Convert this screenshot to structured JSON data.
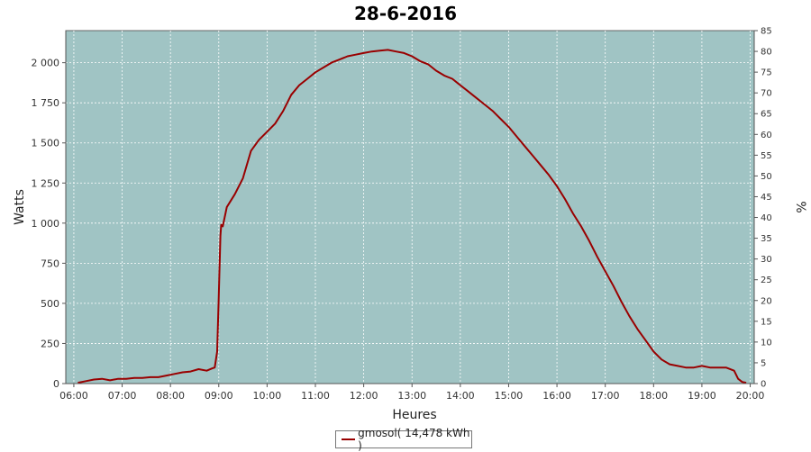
{
  "chart_data": {
    "type": "line",
    "title": "28-6-2016",
    "xlabel": "Heures",
    "ylabel": "Watts",
    "y2label": "%",
    "x_ticks": [
      "06:00",
      "07:00",
      "08:00",
      "09:00",
      "10:00",
      "11:00",
      "12:00",
      "13:00",
      "14:00",
      "15:00",
      "16:00",
      "17:00",
      "18:00",
      "19:00",
      "20:00"
    ],
    "y_ticks": [
      "0",
      "250",
      "500",
      "750",
      "1 000",
      "1 250",
      "1 500",
      "1 750",
      "2 000"
    ],
    "y2_ticks": [
      "0",
      "5",
      "10",
      "15",
      "20",
      "25",
      "30",
      "35",
      "40",
      "45",
      "50",
      "55",
      "60",
      "65",
      "70",
      "75",
      "80",
      "85"
    ],
    "xlim": [
      "05:50",
      "20:05"
    ],
    "ylim": [
      0,
      2200
    ],
    "y2lim": [
      0,
      85
    ],
    "grid": true,
    "legend_position": "bottom",
    "colors": {
      "plot_bg": "#a0c4c4",
      "line": "#990000"
    },
    "series": [
      {
        "name": "gmosol( 14,478 kWh )",
        "x": [
          "06:05",
          "06:15",
          "06:25",
          "06:35",
          "06:45",
          "06:55",
          "07:05",
          "07:15",
          "07:25",
          "07:35",
          "07:45",
          "07:55",
          "08:05",
          "08:15",
          "08:25",
          "08:35",
          "08:45",
          "08:52",
          "08:55",
          "08:58",
          "09:00",
          "09:02",
          "09:03",
          "09:05",
          "09:10",
          "09:20",
          "09:30",
          "09:40",
          "09:50",
          "10:00",
          "10:10",
          "10:20",
          "10:30",
          "10:40",
          "10:50",
          "11:00",
          "11:10",
          "11:20",
          "11:30",
          "11:40",
          "11:50",
          "12:00",
          "12:10",
          "12:20",
          "12:30",
          "12:40",
          "12:50",
          "13:00",
          "13:10",
          "13:20",
          "13:30",
          "13:40",
          "13:50",
          "14:00",
          "14:10",
          "14:20",
          "14:30",
          "14:40",
          "14:50",
          "15:00",
          "15:10",
          "15:20",
          "15:30",
          "15:40",
          "15:50",
          "16:00",
          "16:10",
          "16:20",
          "16:30",
          "16:40",
          "16:50",
          "17:00",
          "17:10",
          "17:20",
          "17:30",
          "17:40",
          "17:50",
          "18:00",
          "18:10",
          "18:20",
          "18:30",
          "18:40",
          "18:50",
          "19:00",
          "19:10",
          "19:20",
          "19:30",
          "19:40",
          "19:45",
          "19:50",
          "19:55"
        ],
        "y": [
          5,
          15,
          25,
          30,
          20,
          30,
          30,
          35,
          35,
          40,
          40,
          50,
          60,
          70,
          75,
          90,
          80,
          95,
          100,
          200,
          550,
          920,
          990,
          980,
          1100,
          1180,
          1280,
          1450,
          1520,
          1570,
          1620,
          1700,
          1800,
          1860,
          1900,
          1940,
          1970,
          2000,
          2020,
          2040,
          2050,
          2060,
          2070,
          2075,
          2080,
          2070,
          2060,
          2040,
          2010,
          1990,
          1950,
          1920,
          1900,
          1860,
          1820,
          1780,
          1740,
          1700,
          1650,
          1600,
          1540,
          1480,
          1420,
          1360,
          1300,
          1230,
          1150,
          1060,
          980,
          890,
          790,
          700,
          610,
          510,
          420,
          340,
          270,
          200,
          150,
          120,
          110,
          100,
          100,
          110,
          100,
          100,
          100,
          80,
          30,
          10,
          5
        ]
      }
    ]
  }
}
